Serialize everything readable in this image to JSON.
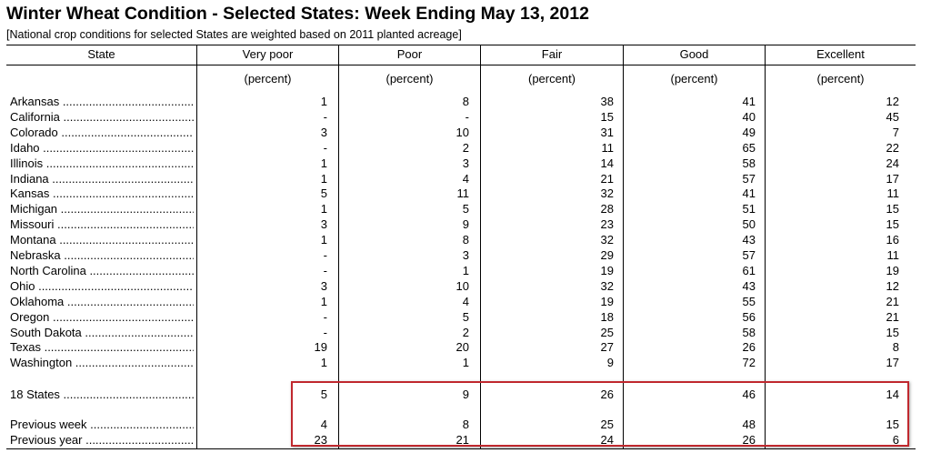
{
  "title": "Winter Wheat Condition - Selected States: Week Ending May 13, 2012",
  "subtitle": "[National crop conditions for selected States are weighted based on 2011 planted acreage]",
  "columns": [
    "State",
    "Very poor",
    "Poor",
    "Fair",
    "Good",
    "Excellent"
  ],
  "unit_label": "(percent)",
  "rows": [
    {
      "state": "Arkansas",
      "values": [
        "1",
        "8",
        "38",
        "41",
        "12"
      ]
    },
    {
      "state": "California",
      "values": [
        "-",
        "-",
        "15",
        "40",
        "45"
      ]
    },
    {
      "state": "Colorado",
      "values": [
        "3",
        "10",
        "31",
        "49",
        "7"
      ]
    },
    {
      "state": "Idaho",
      "values": [
        "-",
        "2",
        "11",
        "65",
        "22"
      ]
    },
    {
      "state": "Illinois",
      "values": [
        "1",
        "3",
        "14",
        "58",
        "24"
      ]
    },
    {
      "state": "Indiana",
      "values": [
        "1",
        "4",
        "21",
        "57",
        "17"
      ]
    },
    {
      "state": "Kansas",
      "values": [
        "5",
        "11",
        "32",
        "41",
        "11"
      ]
    },
    {
      "state": "Michigan",
      "values": [
        "1",
        "5",
        "28",
        "51",
        "15"
      ]
    },
    {
      "state": "Missouri",
      "values": [
        "3",
        "9",
        "23",
        "50",
        "15"
      ]
    },
    {
      "state": "Montana",
      "values": [
        "1",
        "8",
        "32",
        "43",
        "16"
      ]
    },
    {
      "state": "Nebraska",
      "values": [
        "-",
        "3",
        "29",
        "57",
        "11"
      ]
    },
    {
      "state": "North Carolina",
      "values": [
        "-",
        "1",
        "19",
        "61",
        "19"
      ]
    },
    {
      "state": "Ohio",
      "values": [
        "3",
        "10",
        "32",
        "43",
        "12"
      ]
    },
    {
      "state": "Oklahoma",
      "values": [
        "1",
        "4",
        "19",
        "55",
        "21"
      ]
    },
    {
      "state": "Oregon",
      "values": [
        "-",
        "5",
        "18",
        "56",
        "21"
      ]
    },
    {
      "state": "South Dakota",
      "values": [
        "-",
        "2",
        "25",
        "58",
        "15"
      ]
    },
    {
      "state": "Texas",
      "values": [
        "19",
        "20",
        "27",
        "26",
        "8"
      ]
    },
    {
      "state": "Washington",
      "values": [
        "1",
        "1",
        "9",
        "72",
        "17"
      ]
    }
  ],
  "summary_rows": [
    {
      "state": "18 States",
      "values": [
        "5",
        "9",
        "26",
        "46",
        "14"
      ]
    },
    {
      "state": "Previous week",
      "values": [
        "4",
        "8",
        "25",
        "48",
        "15"
      ]
    },
    {
      "state": "Previous year",
      "values": [
        "23",
        "21",
        "24",
        "26",
        "6"
      ]
    }
  ],
  "colors": {
    "highlight_border": "#c0282e",
    "rule": "#000000"
  }
}
